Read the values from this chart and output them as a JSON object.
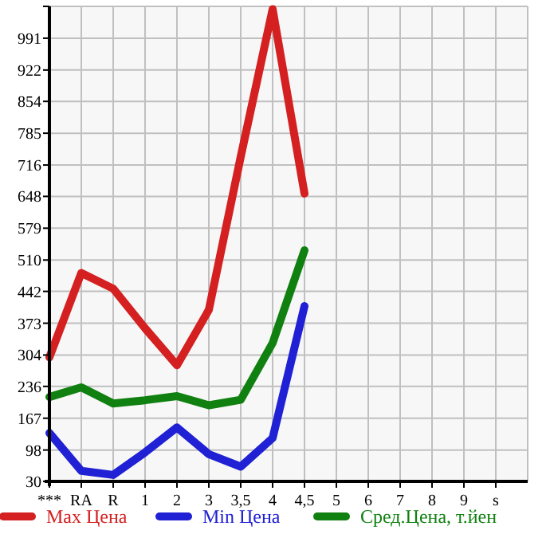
{
  "chart_data": {
    "type": "line",
    "categories": [
      "***",
      "RA",
      "R",
      "1",
      "2",
      "3",
      "3,5",
      "4",
      "4,5",
      "5",
      "6",
      "7",
      "8",
      "9",
      "s"
    ],
    "series": [
      {
        "name": "Max Цена",
        "color": "#d42020",
        "values": [
          299,
          482,
          448,
          362,
          282,
          402,
          734,
          1054,
          654,
          null,
          null,
          null,
          null,
          null,
          null
        ]
      },
      {
        "name": "Min Цена",
        "color": "#2020d4",
        "values": [
          135,
          53,
          44,
          93,
          147,
          89,
          62,
          124,
          410,
          null,
          null,
          null,
          null,
          null,
          null
        ]
      },
      {
        "name": "Сред.Цена, т.йен",
        "color": "#108010",
        "values": [
          213,
          234,
          199,
          206,
          215,
          195,
          207,
          330,
          531,
          null,
          null,
          null,
          null,
          null,
          null
        ]
      }
    ],
    "ylim": [
      30,
      1060
    ],
    "yticks": [
      30,
      98,
      167,
      236,
      304,
      373,
      442,
      510,
      579,
      648,
      716,
      785,
      854,
      922,
      991,
      {
        "value": 1060,
        "label": null
      }
    ],
    "grid": true,
    "legend": "bottom",
    "marker": "none",
    "line_style": "solid"
  }
}
